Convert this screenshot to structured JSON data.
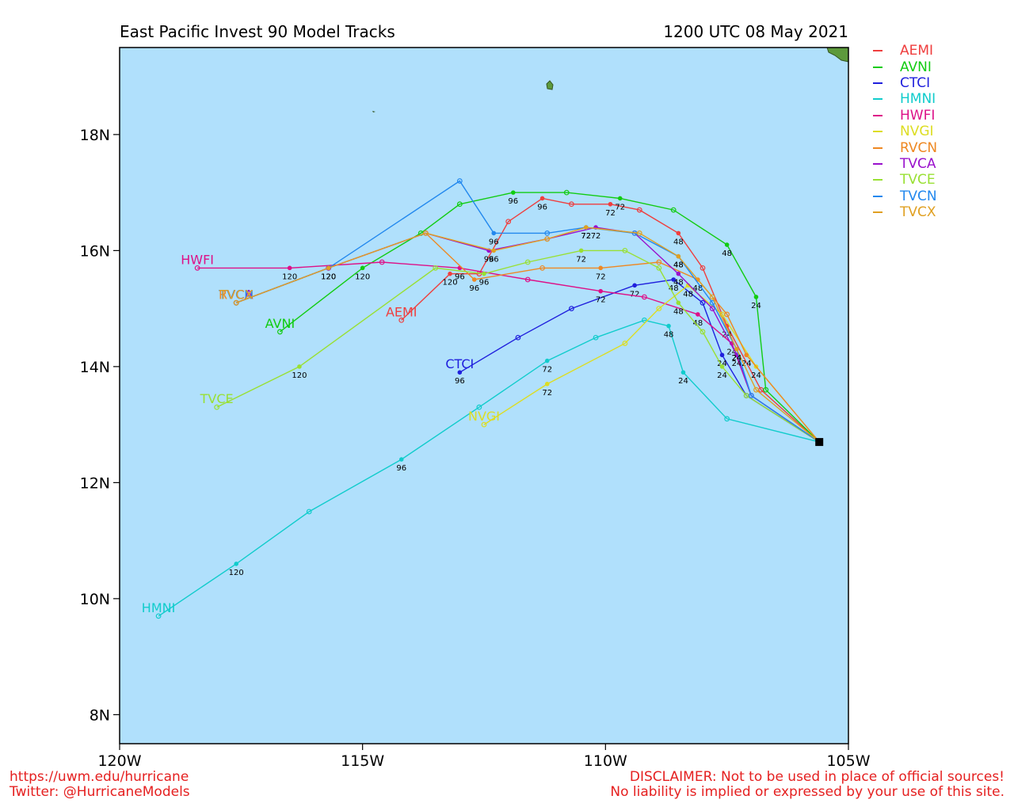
{
  "title": "East Pacific Invest 90 Model Tracks",
  "datetime": "1200 UTC 08 May 2021",
  "footer": {
    "url": "https://uwm.edu/hurricane",
    "twitter": "Twitter: @HurricaneModels",
    "disclaimer_1": "DISCLAIMER: Not to be used in place of official sources!",
    "disclaimer_2": "No liability is implied or expressed by your use of this site."
  },
  "map": {
    "lon_range": [
      -120.0,
      -105.0
    ],
    "lat_range": [
      7.5,
      19.5
    ],
    "ocean_color": "#b0e0fc",
    "land_color": "#5d9a3c",
    "x_ticks": [
      {
        "lon": -120,
        "label": "120W"
      },
      {
        "lon": -115,
        "label": "115W"
      },
      {
        "lon": -110,
        "label": "110W"
      },
      {
        "lon": -105,
        "label": "105W"
      }
    ],
    "y_ticks": [
      {
        "lat": 8,
        "label": "8N"
      },
      {
        "lat": 10,
        "label": "10N"
      },
      {
        "lat": 12,
        "label": "12N"
      },
      {
        "lat": 14,
        "label": "14N"
      },
      {
        "lat": 16,
        "label": "16N"
      },
      {
        "lat": 18,
        "label": "18N"
      }
    ],
    "origin": {
      "lon": -105.6,
      "lat": 12.7
    }
  },
  "chart_data": {
    "type": "line",
    "x_label": "",
    "y_label": "",
    "series": [
      {
        "name": "AEMI",
        "color": "#ef3e3e",
        "points": [
          [
            -105.6,
            12.7
          ],
          [
            -106.8,
            13.6
          ],
          [
            -107.5,
            14.7
          ],
          [
            -108.0,
            15.7
          ],
          [
            -108.5,
            16.3
          ],
          [
            -109.3,
            16.7
          ],
          [
            -109.9,
            16.8
          ],
          [
            -110.7,
            16.8
          ],
          [
            -111.3,
            16.9
          ],
          [
            -112.0,
            16.5
          ],
          [
            -112.6,
            15.6
          ],
          [
            -113.2,
            15.6
          ],
          [
            -114.2,
            14.8
          ]
        ],
        "labels": [
          {
            "at": 2,
            "text": "24"
          },
          {
            "at": 4,
            "text": "48"
          },
          {
            "at": 6,
            "text": "72"
          },
          {
            "at": 8,
            "text": "96"
          },
          {
            "at": 11,
            "text": "120"
          }
        ],
        "end_label": "AEMI"
      },
      {
        "name": "AVNI",
        "color": "#11cc11",
        "points": [
          [
            -105.6,
            12.7
          ],
          [
            -106.7,
            13.6
          ],
          [
            -106.9,
            15.2
          ],
          [
            -107.5,
            16.1
          ],
          [
            -108.6,
            16.7
          ],
          [
            -109.7,
            16.9
          ],
          [
            -110.8,
            17.0
          ],
          [
            -111.9,
            17.0
          ],
          [
            -113.0,
            16.8
          ],
          [
            -113.8,
            16.3
          ],
          [
            -115.0,
            15.7
          ],
          [
            -116.7,
            14.6
          ]
        ],
        "labels": [
          {
            "at": 2,
            "text": "24"
          },
          {
            "at": 3,
            "text": "48"
          },
          {
            "at": 5,
            "text": "72"
          },
          {
            "at": 7,
            "text": "96"
          },
          {
            "at": 10,
            "text": "120"
          }
        ],
        "end_label": "AVNI"
      },
      {
        "name": "CTCI",
        "color": "#2020dd",
        "points": [
          [
            -105.6,
            12.7
          ],
          [
            -107.1,
            13.5
          ],
          [
            -107.6,
            14.2
          ],
          [
            -108.0,
            15.1
          ],
          [
            -108.6,
            15.5
          ],
          [
            -109.4,
            15.4
          ],
          [
            -110.7,
            15.0
          ],
          [
            -111.8,
            14.5
          ],
          [
            -113.0,
            13.9
          ]
        ],
        "labels": [
          {
            "at": 2,
            "text": "24"
          },
          {
            "at": 4,
            "text": "48"
          },
          {
            "at": 5,
            "text": "72"
          },
          {
            "at": 8,
            "text": "96"
          }
        ],
        "end_label": "CTCI"
      },
      {
        "name": "HMNI",
        "color": "#11cccc",
        "points": [
          [
            -105.6,
            12.7
          ],
          [
            -107.5,
            13.1
          ],
          [
            -108.4,
            13.9
          ],
          [
            -108.7,
            14.7
          ],
          [
            -109.2,
            14.8
          ],
          [
            -110.2,
            14.5
          ],
          [
            -111.2,
            14.1
          ],
          [
            -112.6,
            13.3
          ],
          [
            -114.2,
            12.4
          ],
          [
            -116.1,
            11.5
          ],
          [
            -117.6,
            10.6
          ],
          [
            -119.2,
            9.7
          ]
        ],
        "labels": [
          {
            "at": 2,
            "text": "24"
          },
          {
            "at": 3,
            "text": "48"
          },
          {
            "at": 6,
            "text": "72"
          },
          {
            "at": 8,
            "text": "96"
          },
          {
            "at": 10,
            "text": "120"
          }
        ],
        "end_label": "HMNI"
      },
      {
        "name": "HWFI",
        "color": "#dd1188",
        "points": [
          [
            -105.6,
            12.7
          ],
          [
            -107.0,
            13.5
          ],
          [
            -107.4,
            14.4
          ],
          [
            -108.1,
            14.9
          ],
          [
            -109.2,
            15.2
          ],
          [
            -110.1,
            15.3
          ],
          [
            -111.6,
            15.5
          ],
          [
            -113.0,
            15.7
          ],
          [
            -114.6,
            15.8
          ],
          [
            -116.5,
            15.7
          ],
          [
            -118.4,
            15.7
          ]
        ],
        "labels": [
          {
            "at": 2,
            "text": "24"
          },
          {
            "at": 3,
            "text": "48"
          },
          {
            "at": 5,
            "text": "72"
          },
          {
            "at": 7,
            "text": "96"
          },
          {
            "at": 9,
            "text": "120"
          }
        ],
        "end_label": "HWFI"
      },
      {
        "name": "NVGI",
        "color": "#dddd22",
        "points": [
          [
            -105.6,
            12.7
          ],
          [
            -106.9,
            14.0
          ],
          [
            -107.6,
            14.9
          ],
          [
            -108.3,
            15.4
          ],
          [
            -108.9,
            15.0
          ],
          [
            -109.6,
            14.4
          ],
          [
            -111.2,
            13.7
          ],
          [
            -112.5,
            13.0
          ]
        ],
        "labels": [
          {
            "at": 1,
            "text": "24"
          },
          {
            "at": 3,
            "text": "48"
          },
          {
            "at": 6,
            "text": "72"
          }
        ],
        "end_label": "NVGI"
      },
      {
        "name": "RVCN",
        "color": "#ee8822",
        "points": [
          [
            -105.6,
            12.7
          ],
          [
            -107.1,
            14.2
          ],
          [
            -107.5,
            14.9
          ],
          [
            -108.1,
            15.5
          ],
          [
            -108.9,
            15.8
          ],
          [
            -110.1,
            15.7
          ],
          [
            -111.3,
            15.7
          ],
          [
            -112.7,
            15.5
          ],
          [
            -113.7,
            16.3
          ],
          [
            -115.7,
            15.7
          ],
          [
            -117.6,
            15.1
          ]
        ],
        "labels": [
          {
            "at": 1,
            "text": "24"
          },
          {
            "at": 3,
            "text": "48"
          },
          {
            "at": 5,
            "text": "72"
          },
          {
            "at": 7,
            "text": "96"
          }
        ],
        "end_label": "RVCN"
      },
      {
        "name": "TVCA",
        "color": "#9911cc",
        "points": [
          [
            -105.6,
            12.7
          ],
          [
            -107.0,
            13.5
          ],
          [
            -107.3,
            14.2
          ],
          [
            -107.8,
            15.0
          ],
          [
            -108.5,
            15.6
          ],
          [
            -109.4,
            16.3
          ],
          [
            -110.2,
            16.4
          ],
          [
            -111.2,
            16.2
          ],
          [
            -112.4,
            16.0
          ],
          [
            -113.7,
            16.3
          ],
          [
            -115.7,
            15.7
          ],
          [
            -117.6,
            15.1
          ]
        ],
        "labels": [
          {
            "at": 2,
            "text": "24"
          },
          {
            "at": 4,
            "text": "48"
          },
          {
            "at": 6,
            "text": "72"
          },
          {
            "at": 8,
            "text": "96"
          }
        ],
        "end_label": "TVCA"
      },
      {
        "name": "TVCE",
        "color": "#99e033",
        "points": [
          [
            -105.6,
            12.7
          ],
          [
            -107.1,
            13.5
          ],
          [
            -107.6,
            14.0
          ],
          [
            -108.0,
            14.6
          ],
          [
            -108.5,
            15.1
          ],
          [
            -108.9,
            15.7
          ],
          [
            -109.6,
            16.0
          ],
          [
            -110.5,
            16.0
          ],
          [
            -111.6,
            15.8
          ],
          [
            -112.5,
            15.6
          ],
          [
            -113.5,
            15.7
          ],
          [
            -116.3,
            14.0
          ],
          [
            -118.0,
            13.3
          ]
        ],
        "labels": [
          {
            "at": 2,
            "text": "24"
          },
          {
            "at": 4,
            "text": "48"
          },
          {
            "at": 7,
            "text": "72"
          },
          {
            "at": 9,
            "text": "96"
          },
          {
            "at": 11,
            "text": "120"
          }
        ],
        "end_label": "TVCE"
      },
      {
        "name": "TVCN",
        "color": "#2288ee",
        "points": [
          [
            -105.6,
            12.7
          ],
          [
            -107.0,
            13.5
          ],
          [
            -107.3,
            14.3
          ],
          [
            -107.8,
            15.1
          ],
          [
            -108.5,
            15.9
          ],
          [
            -109.4,
            16.3
          ],
          [
            -110.4,
            16.4
          ],
          [
            -111.2,
            16.3
          ],
          [
            -112.3,
            16.3
          ],
          [
            -113.0,
            17.2
          ],
          [
            -115.7,
            15.7
          ],
          [
            -117.6,
            15.1
          ]
        ],
        "labels": [
          {
            "at": 2,
            "text": "24"
          },
          {
            "at": 4,
            "text": "48"
          },
          {
            "at": 6,
            "text": "72"
          },
          {
            "at": 8,
            "text": "96"
          },
          {
            "at": 10,
            "text": "120"
          }
        ],
        "end_label": "TVCN"
      },
      {
        "name": "TVCX",
        "color": "#e0a022",
        "points": [
          [
            -105.6,
            12.7
          ],
          [
            -106.9,
            13.6
          ],
          [
            -107.3,
            14.3
          ],
          [
            -107.8,
            15.2
          ],
          [
            -108.5,
            15.9
          ],
          [
            -109.3,
            16.3
          ],
          [
            -110.4,
            16.4
          ],
          [
            -111.2,
            16.2
          ],
          [
            -112.3,
            16.0
          ],
          [
            -113.7,
            16.3
          ],
          [
            -115.7,
            15.7
          ],
          [
            -117.6,
            15.1
          ]
        ],
        "labels": [
          {
            "at": 2,
            "text": "24"
          },
          {
            "at": 4,
            "text": "48"
          },
          {
            "at": 6,
            "text": "72"
          },
          {
            "at": 8,
            "text": "96"
          },
          {
            "at": 10,
            "text": "120"
          }
        ],
        "end_label": "TVCX"
      }
    ]
  }
}
